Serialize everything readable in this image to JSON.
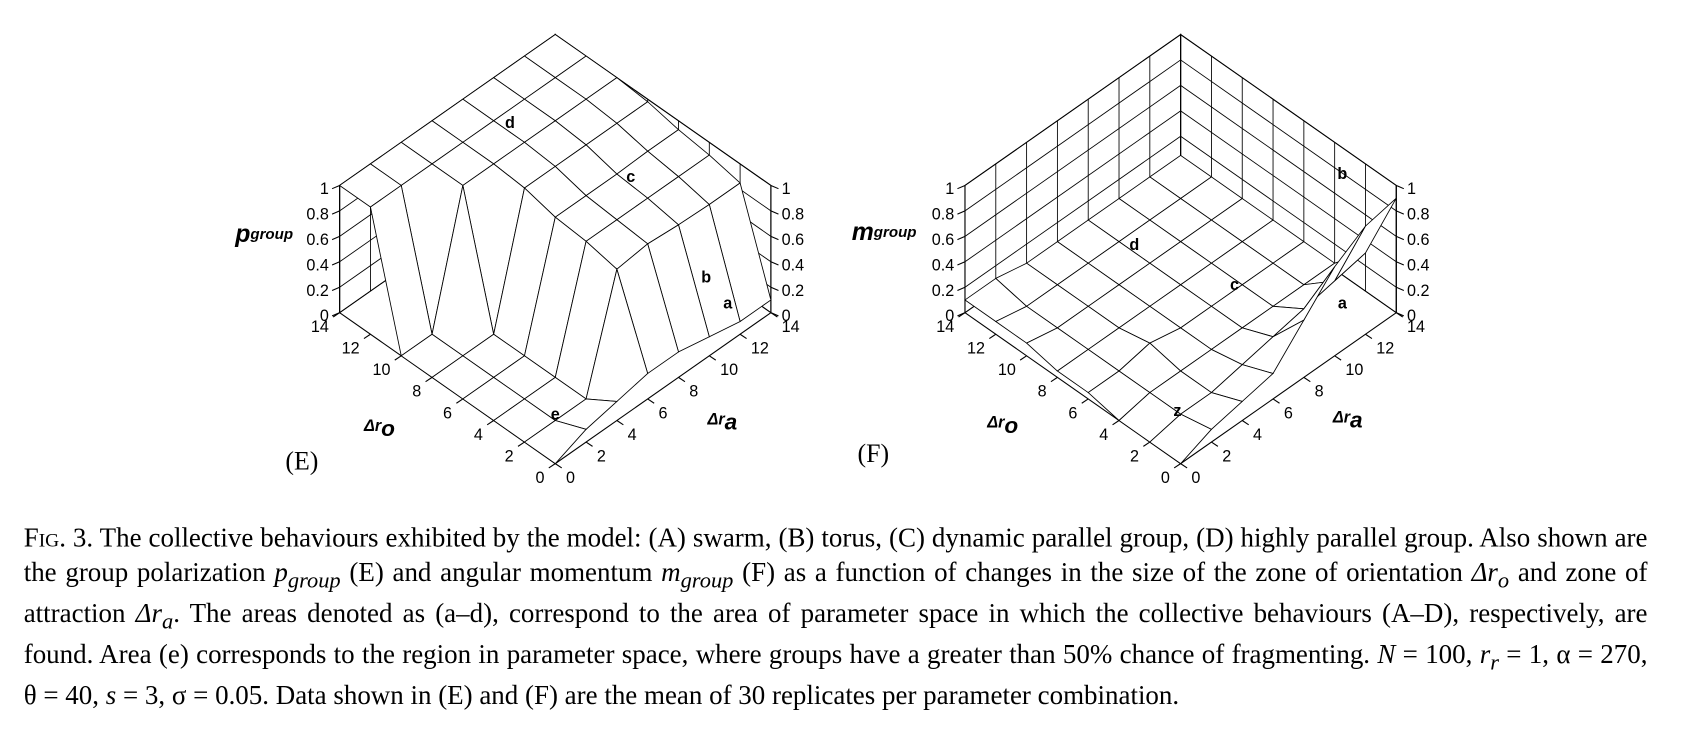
{
  "chart_data": [
    {
      "type": "surface",
      "panel": "(E)",
      "zlabel": "p",
      "zlabel_sub": "group",
      "xlabel": "Δr",
      "xlabel_sub": "o",
      "ylabel": "Δr",
      "ylabel_sub": "a",
      "x": [
        0,
        2,
        4,
        6,
        8,
        10,
        12,
        14
      ],
      "y": [
        0,
        2,
        4,
        6,
        8,
        10,
        12,
        14
      ],
      "z": [
        [
          0,
          0.1,
          0.15,
          0.2,
          0.2,
          0.15,
          0.1,
          0.1
        ],
        [
          0,
          0,
          0,
          0.85,
          0.88,
          0.86,
          0.85,
          0.85
        ],
        [
          0,
          0,
          0,
          0.9,
          0.9,
          0.9,
          0.9,
          0.9
        ],
        [
          0,
          0,
          0,
          0.92,
          0.92,
          0.92,
          0.93,
          0.93
        ],
        [
          0,
          0,
          0,
          0.98,
          0.98,
          0.98,
          0.98,
          0.98
        ],
        [
          0,
          0,
          1,
          1,
          1,
          1,
          1,
          1
        ],
        [
          1,
          1,
          1,
          1,
          1,
          1,
          1,
          1
        ],
        [
          1,
          1,
          1,
          1,
          1,
          1,
          1,
          1
        ]
      ],
      "xlim": [
        0,
        14
      ],
      "ylim": [
        0,
        14
      ],
      "zlim": [
        0,
        1
      ],
      "xticks": [
        0,
        2,
        4,
        6,
        8,
        10,
        12,
        14
      ],
      "yticks": [
        0,
        2,
        4,
        6,
        8,
        10,
        12,
        14
      ],
      "zticks": [
        0,
        0.2,
        0.4,
        0.6,
        0.8,
        1
      ],
      "regions": [
        "d",
        "c",
        "b",
        "a",
        "e"
      ]
    },
    {
      "type": "surface",
      "panel": "(F)",
      "zlabel": "m",
      "zlabel_sub": "group",
      "xlabel": "Δr",
      "xlabel_sub": "o",
      "ylabel": "Δr",
      "ylabel_sub": "a",
      "x": [
        0,
        2,
        4,
        6,
        8,
        10,
        12,
        14
      ],
      "y": [
        0,
        2,
        4,
        6,
        8,
        10,
        12,
        14
      ],
      "z": [
        [
          0,
          0.1,
          0.15,
          0.2,
          0.45,
          0.7,
          0.85,
          0.9
        ],
        [
          0,
          0.05,
          0.05,
          0.1,
          0.15,
          0.2,
          0.25,
          0.3
        ],
        [
          0,
          0.05,
          0.05,
          0.05,
          0.05,
          0.05,
          0.05,
          0.05
        ],
        [
          0.05,
          0.05,
          0.1,
          0.05,
          0.05,
          0.05,
          0.05,
          0.05
        ],
        [
          0.05,
          0.05,
          0.05,
          0.05,
          0.05,
          0.05,
          0.05,
          0.05
        ],
        [
          0.1,
          0.05,
          0.05,
          0.05,
          0.05,
          0.05,
          0.05,
          0.05
        ],
        [
          0.1,
          0.05,
          0.05,
          0.05,
          0.05,
          0.05,
          0.05,
          0.05
        ],
        [
          0.1,
          0.1,
          0.05,
          0.05,
          0.05,
          0.05,
          0.05,
          0.05
        ]
      ],
      "xlim": [
        0,
        14
      ],
      "ylim": [
        0,
        14
      ],
      "zlim": [
        0,
        1
      ],
      "xticks": [
        0,
        2,
        4,
        6,
        8,
        10,
        12,
        14
      ],
      "yticks": [
        0,
        2,
        4,
        6,
        8,
        10,
        12,
        14
      ],
      "zticks": [
        0,
        0.2,
        0.4,
        0.6,
        0.8,
        1
      ],
      "regions": [
        "b",
        "d",
        "c",
        "a",
        "z"
      ]
    }
  ],
  "caption": {
    "parts": [
      "Fig. 3.",
      " The collective behaviours exhibited by the model: (A) swarm, (B) torus, (C) dynamic parallel group, (D) highly parallel group. Also shown are the group polarization ",
      "p",
      "group",
      " (E) and angular momentum ",
      "m",
      "group",
      " (F) as a function of changes in the size of the zone of orientation ",
      "Δr",
      "o",
      " and zone of attraction ",
      "Δr",
      "a",
      ". The areas denoted as (a–d), correspond to the area of parameter space in which the collective behaviours (A–D), respectively, are found. Area (e) corresponds to the region in parameter space, where groups have a greater than 50% chance of fragmenting. ",
      "N",
      " = 100, ",
      "r",
      "r",
      " = 1, α = 270, θ = 40, ",
      "s",
      " = 3, σ = 0.05. Data shown in (E) and (F) are the mean of 30 replicates per parameter combination."
    ]
  }
}
